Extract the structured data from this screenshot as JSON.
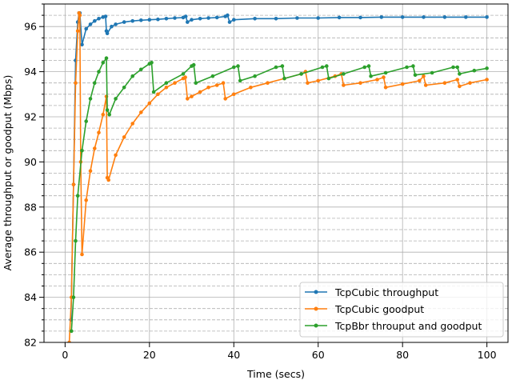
{
  "chart_data": {
    "type": "line",
    "title": "",
    "xlabel": "Time (secs)",
    "ylabel": "Average throughput or goodput (Mbps)",
    "xlim": [
      -5,
      105
    ],
    "ylim": [
      82,
      97
    ],
    "x_ticks": [
      0,
      20,
      40,
      60,
      80,
      100
    ],
    "x_tick_labels": [
      "0",
      "20",
      "40",
      "60",
      "80",
      "100"
    ],
    "y_ticks": [
      82,
      84,
      86,
      88,
      90,
      92,
      94,
      96
    ],
    "y_tick_labels": [
      "82",
      "84",
      "86",
      "88",
      "90",
      "92",
      "94",
      "96"
    ],
    "grid": "major solid, minor dashed",
    "legend_position": "lower-right",
    "series": [
      {
        "name": "TcpCubic throughput",
        "color": "#1f77b4",
        "x": [
          1.4,
          2.0,
          2.5,
          3.0,
          3.3,
          3.5,
          4.0,
          5.0,
          6.0,
          7.0,
          8.0,
          9.0,
          9.6,
          9.8,
          10.0,
          11.0,
          12.0,
          14.0,
          16.0,
          18.0,
          20.0,
          22.0,
          24.0,
          26.0,
          28.0,
          28.6,
          29.0,
          30.0,
          32.0,
          34.0,
          36.0,
          38.0,
          38.5,
          39.0,
          40.0,
          45.0,
          50.0,
          55.0,
          60.0,
          65.0,
          70.0,
          75.0,
          80.0,
          85.0,
          90.0,
          95.0,
          100.0
        ],
        "y": [
          83.0,
          89.0,
          94.5,
          96.2,
          96.6,
          96.6,
          95.2,
          95.9,
          96.1,
          96.25,
          96.35,
          96.42,
          96.45,
          95.8,
          95.7,
          96.0,
          96.1,
          96.2,
          96.25,
          96.28,
          96.3,
          96.32,
          96.35,
          96.38,
          96.4,
          96.45,
          96.2,
          96.3,
          96.35,
          96.38,
          96.4,
          96.45,
          96.5,
          96.2,
          96.3,
          96.35,
          96.35,
          96.38,
          96.38,
          96.4,
          96.4,
          96.42,
          96.42,
          96.42,
          96.42,
          96.42,
          96.42
        ]
      },
      {
        "name": "TcpCubic goodput",
        "color": "#ff7f0e",
        "x": [
          1.0,
          1.5,
          2.0,
          2.5,
          3.0,
          3.3,
          3.5,
          3.7,
          4.0,
          5.0,
          6.0,
          7.0,
          8.0,
          9.0,
          9.8,
          10.0,
          10.3,
          12.0,
          14.0,
          16.0,
          18.0,
          20.0,
          22.0,
          24.0,
          26.0,
          28.0,
          28.5,
          29.0,
          30.0,
          32.0,
          34.0,
          36.0,
          37.5,
          38.0,
          40.0,
          44.0,
          48.0,
          52.0,
          56.0,
          57.0,
          57.5,
          60.0,
          64.0,
          65.5,
          66.0,
          70.0,
          74.0,
          75.5,
          76.0,
          80.0,
          84.0,
          85.0,
          85.5,
          90.0,
          93.0,
          93.5,
          96.0,
          100.0
        ],
        "y": [
          82.0,
          84.0,
          89.0,
          93.5,
          95.8,
          96.6,
          96.5,
          90.0,
          85.9,
          88.3,
          89.6,
          90.6,
          91.3,
          92.1,
          92.9,
          89.3,
          89.2,
          90.3,
          91.1,
          91.7,
          92.2,
          92.6,
          93.0,
          93.3,
          93.5,
          93.7,
          93.75,
          92.8,
          92.9,
          93.1,
          93.3,
          93.4,
          93.5,
          92.8,
          93.0,
          93.3,
          93.5,
          93.7,
          93.9,
          94.0,
          93.5,
          93.6,
          93.8,
          93.9,
          93.4,
          93.5,
          93.65,
          93.75,
          93.3,
          93.45,
          93.6,
          93.8,
          93.4,
          93.5,
          93.65,
          93.35,
          93.5,
          93.65
        ]
      },
      {
        "name": "TcpBbr throuput and goodput",
        "color": "#2ca02c",
        "x": [
          1.5,
          2.0,
          2.5,
          3.0,
          4.0,
          5.0,
          6.0,
          7.0,
          8.0,
          9.0,
          9.8,
          10.0,
          10.5,
          12.0,
          14.0,
          16.0,
          18.0,
          20.0,
          20.5,
          21.0,
          24.0,
          28.0,
          30.0,
          30.5,
          31.0,
          35.0,
          40.0,
          41.0,
          41.5,
          45.0,
          50.0,
          51.5,
          52.0,
          56.0,
          61.0,
          62.0,
          62.5,
          66.0,
          71.0,
          72.0,
          72.5,
          76.0,
          81.0,
          82.5,
          83.0,
          87.0,
          92.0,
          93.0,
          93.5,
          97.0,
          100.0
        ],
        "y": [
          82.5,
          84.0,
          86.5,
          88.5,
          90.5,
          91.8,
          92.8,
          93.5,
          94.0,
          94.4,
          94.6,
          92.3,
          92.1,
          92.8,
          93.3,
          93.8,
          94.1,
          94.35,
          94.4,
          93.1,
          93.5,
          93.9,
          94.25,
          94.3,
          93.5,
          93.8,
          94.2,
          94.25,
          93.6,
          93.8,
          94.2,
          94.25,
          93.7,
          93.9,
          94.2,
          94.25,
          93.7,
          93.9,
          94.2,
          94.25,
          93.8,
          93.95,
          94.2,
          94.25,
          93.85,
          93.95,
          94.2,
          94.2,
          93.9,
          94.05,
          94.15
        ]
      }
    ]
  }
}
